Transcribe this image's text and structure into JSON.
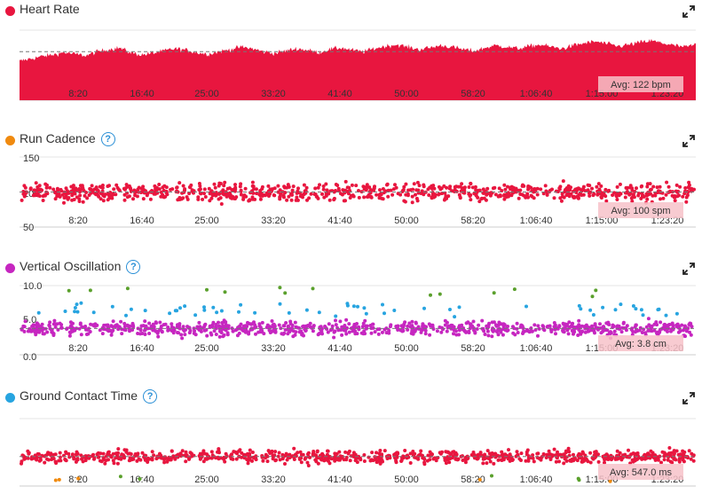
{
  "colors": {
    "heart_rate": "#e8163f",
    "cadence_legend": "#f08a0f",
    "oscillation": "#c626c0",
    "gct_legend": "#27a4e0",
    "green": "#5aa02c",
    "blue": "#27a4e0",
    "orange": "#f08a0f",
    "grid": "#e6e6e6",
    "avg_line": "#777777",
    "avg_box": "#f7c2c9"
  },
  "x_ticks": [
    "8:20",
    "16:40",
    "25:00",
    "33:20",
    "41:40",
    "50:00",
    "58:20",
    "1:06:40",
    "1:15:00",
    "1:23:20"
  ],
  "panels": [
    {
      "title": "Heart Rate",
      "help": "",
      "avg_label": "Avg: 122 bpm",
      "y_ticks": []
    },
    {
      "title": "Run Cadence",
      "help": "?",
      "avg_label": "Avg: 100 spm",
      "y_ticks": [
        "150",
        "100",
        "50"
      ]
    },
    {
      "title": "Vertical Oscillation",
      "help": "?",
      "avg_label": "Avg: 3.8 cm",
      "y_ticks": [
        "10.0",
        "5.0",
        "0.0"
      ]
    },
    {
      "title": "Ground Contact Time",
      "help": "?",
      "avg_label": "Avg: 547.0 ms",
      "y_ticks": []
    }
  ],
  "chart_data": [
    {
      "type": "area",
      "title": "Heart Rate",
      "x_unit": "elapsed time",
      "x_range": [
        "0:00",
        "1:28:00"
      ],
      "avg": 122,
      "unit": "bpm",
      "series": [
        {
          "name": "Heart Rate",
          "values": [
            110,
            113,
            116,
            118,
            121,
            119,
            117,
            122,
            125,
            127,
            121,
            118,
            120,
            123,
            126,
            124,
            121,
            119,
            122,
            125,
            128,
            126,
            122,
            120,
            123,
            126,
            124,
            121,
            125,
            127,
            124,
            122,
            126,
            129,
            131,
            128,
            125,
            127,
            130,
            128,
            125,
            123,
            127,
            130,
            128,
            126,
            129,
            131,
            128,
            126,
            130,
            133,
            135,
            132,
            129,
            131,
            134,
            136,
            133,
            130,
            128,
            131
          ]
        }
      ]
    },
    {
      "type": "scatter",
      "title": "Run Cadence",
      "x_unit": "elapsed time",
      "ylim": [
        50,
        150
      ],
      "y_ticks": [
        150,
        100,
        50
      ],
      "avg": 100,
      "unit": "spm",
      "series": [
        {
          "name": "Run Cadence",
          "mean": 100,
          "spread_min": 80,
          "spread_max": 148,
          "points": 900
        }
      ]
    },
    {
      "type": "scatter",
      "title": "Vertical Oscillation",
      "x_unit": "elapsed time",
      "ylim": [
        0,
        10
      ],
      "y_ticks": [
        10,
        5,
        0
      ],
      "avg": 3.8,
      "unit": "cm",
      "series": [
        {
          "name": "Vertical Oscillation",
          "mean": 3.8,
          "spread_min": 0.8,
          "spread_max": 6.8,
          "points": 900
        },
        {
          "name": "",
          "mean": 6.2,
          "spread_min": 5.5,
          "spread_max": 7.5,
          "points": 60
        },
        {
          "name": "",
          "mean": 9.0,
          "spread_min": 8.4,
          "spread_max": 9.9,
          "points": 14
        }
      ]
    },
    {
      "type": "scatter",
      "title": "Ground Contact Time",
      "x_unit": "elapsed time",
      "avg": 547.0,
      "unit": "ms",
      "series": [
        {
          "name": "Ground Contact Time",
          "mean": 547,
          "spread_min": 450,
          "spread_max": 700,
          "points": 900
        },
        {
          "name": "",
          "mean": 400,
          "spread_min": 380,
          "spread_max": 420,
          "points": 10
        }
      ]
    }
  ]
}
